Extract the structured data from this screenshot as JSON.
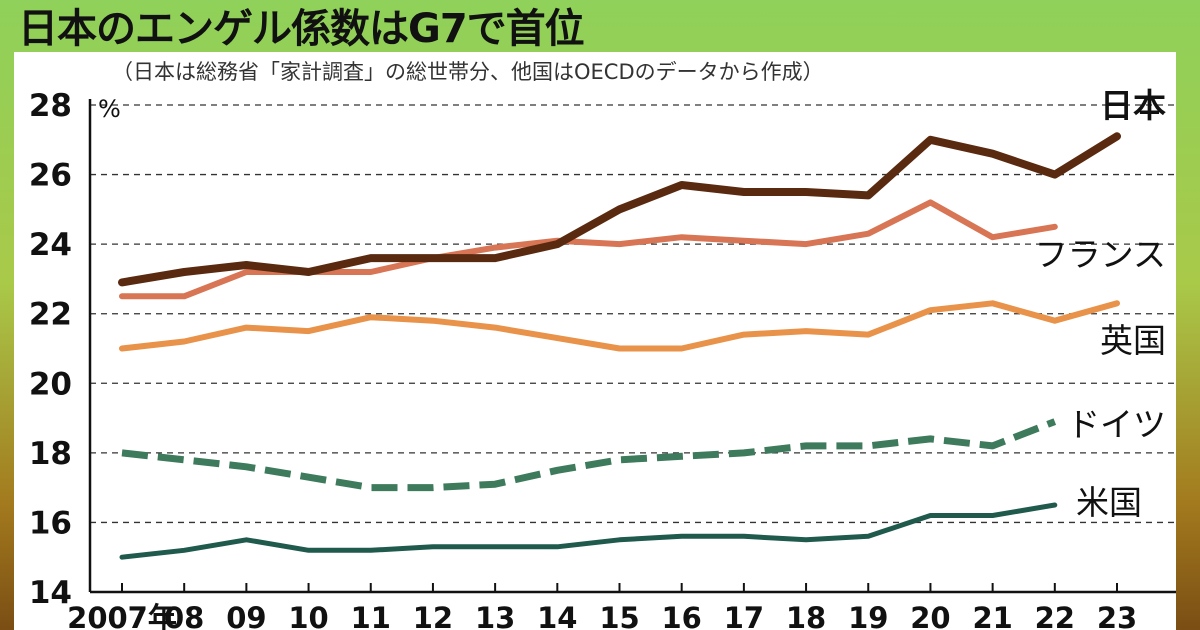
{
  "header": {
    "title": "日本のエンゲル係数はG7で首位",
    "subtitle": "（日本は総務省「家計調査」の総世帯分、他国はOECDのデータから作成）"
  },
  "chart_data": {
    "type": "line",
    "unit": "%",
    "x": [
      "2007年",
      "08",
      "09",
      "10",
      "11",
      "12",
      "13",
      "14",
      "15",
      "16",
      "17",
      "18",
      "19",
      "20",
      "21",
      "22",
      "23"
    ],
    "yticks": [
      14,
      16,
      18,
      20,
      22,
      24,
      26,
      28
    ],
    "ylim": [
      14,
      28
    ],
    "grid": true,
    "series": [
      {
        "name": "日本",
        "color": "#5a2a10",
        "style": "solid",
        "bold_label": true,
        "values": [
          22.9,
          23.2,
          23.4,
          23.2,
          23.6,
          23.6,
          23.6,
          24.0,
          25.0,
          25.7,
          25.5,
          25.5,
          25.4,
          27.0,
          26.6,
          26.0,
          27.1
        ]
      },
      {
        "name": "フランス",
        "color": "#d77555",
        "style": "solid",
        "values": [
          22.5,
          22.5,
          23.2,
          23.2,
          23.2,
          23.6,
          23.9,
          24.1,
          24.0,
          24.2,
          24.1,
          24.0,
          24.3,
          25.2,
          24.2,
          24.5,
          null
        ]
      },
      {
        "name": "英国",
        "color": "#e8924a",
        "style": "solid",
        "values": [
          21.0,
          21.2,
          21.6,
          21.5,
          21.9,
          21.8,
          21.6,
          21.3,
          21.0,
          21.0,
          21.4,
          21.5,
          21.4,
          22.1,
          22.3,
          21.8,
          22.3
        ]
      },
      {
        "name": "ドイツ",
        "color": "#3e7a5c",
        "style": "dashed",
        "values": [
          18.0,
          17.8,
          17.6,
          17.3,
          17.0,
          17.0,
          17.1,
          17.5,
          17.8,
          17.9,
          18.0,
          18.2,
          18.2,
          18.4,
          18.2,
          18.9,
          null
        ]
      },
      {
        "name": "米国",
        "color": "#1f5a4c",
        "style": "solid",
        "values": [
          15.0,
          15.2,
          15.5,
          15.2,
          15.2,
          15.3,
          15.3,
          15.3,
          15.5,
          15.6,
          15.6,
          15.5,
          15.6,
          16.2,
          16.2,
          16.5,
          null
        ]
      }
    ]
  }
}
